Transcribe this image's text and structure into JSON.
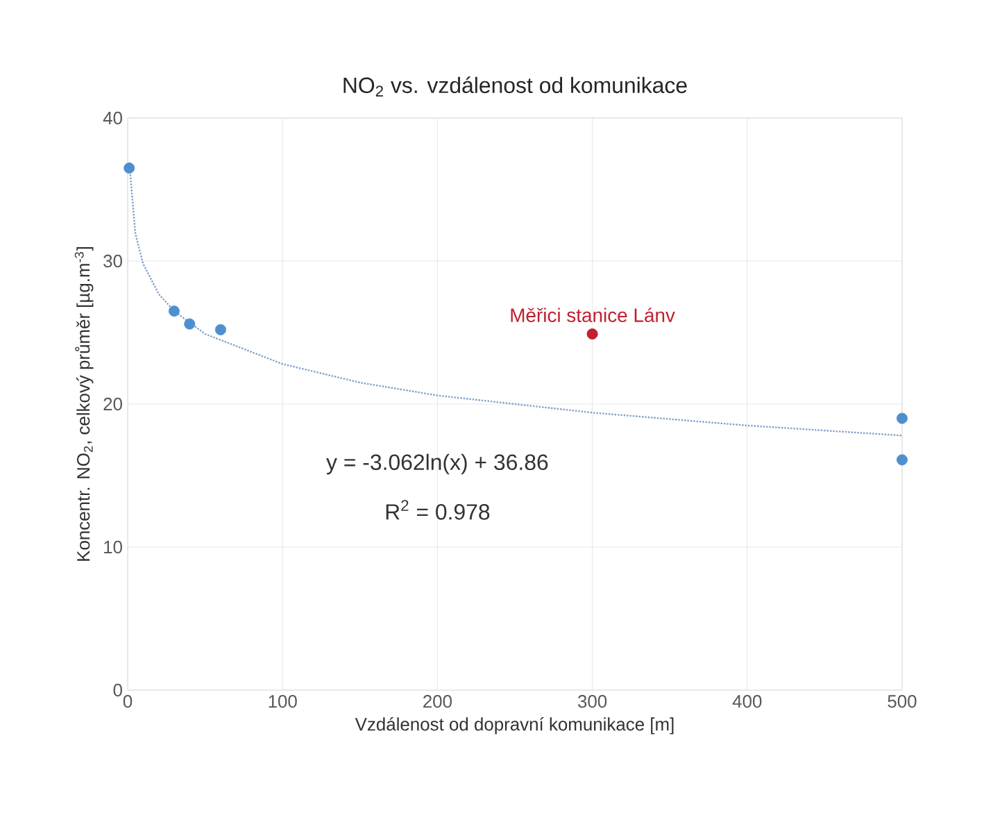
{
  "chart_data": {
    "type": "scatter",
    "title": "NO$_{2}$ vs. vzdálenost od komunikace",
    "xlabel": "Vzdálenost od dopravní komunikace [m]",
    "ylabel": "Koncentr. NO$_{2}$, celkový průměr [µg.m$^{-3}$]",
    "xlim": [
      0,
      500
    ],
    "xticks": [
      0,
      100,
      200,
      300,
      400,
      500
    ],
    "ylim": [
      0,
      40
    ],
    "yticks": [
      0,
      10,
      20,
      30,
      40
    ],
    "grid": true,
    "legend": false,
    "series": [
      {
        "type": "line",
        "color": "#7f9fc8",
        "line_style": "dotted",
        "marker": "none",
        "x": [
          1,
          5,
          10,
          20,
          30,
          50,
          100,
          150,
          200,
          300,
          400,
          500
        ],
        "values": [
          36.9,
          31.9,
          29.8,
          27.7,
          26.5,
          24.9,
          22.8,
          21.5,
          20.6,
          19.4,
          18.5,
          17.8
        ]
      },
      {
        "color": "#4f8fcf",
        "marker": "circle",
        "x": [
          1,
          30,
          40,
          60,
          500,
          500
        ],
        "values": [
          36.5,
          26.5,
          25.6,
          25.2,
          19.0,
          16.1
        ]
      },
      {
        "name": "Měřici stanice Lánv",
        "color": "#c0202f",
        "marker": "circle",
        "x": [
          300
        ],
        "values": [
          24.9
        ]
      }
    ],
    "annotations": [
      "y = -3.062ln(x) + 36.86",
      "R$^{2}$ = 0.978"
    ]
  }
}
